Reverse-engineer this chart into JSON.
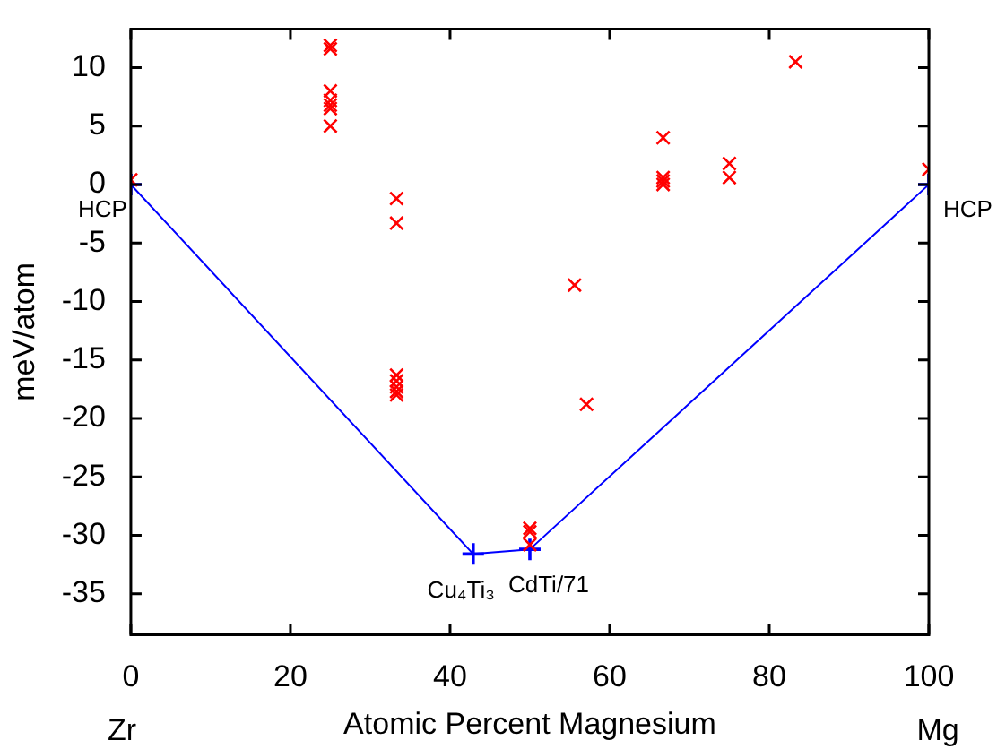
{
  "chart_data": {
    "type": "scatter",
    "xlabel": "Atomic Percent Magnesium",
    "ylabel": "meV/atom",
    "xlim": [
      0,
      100
    ],
    "xticks": [
      0,
      20,
      40,
      60,
      80,
      100
    ],
    "ylim": [
      -38.5,
      13.3
    ],
    "yticks": [
      -35,
      -30,
      -25,
      -20,
      -15,
      -10,
      -5,
      0,
      5,
      10
    ],
    "grid": false,
    "legend": false,
    "series": [
      {
        "type": "scatter",
        "color": "#ff0000",
        "marker": "cross",
        "x": [
          0,
          25,
          25,
          25,
          25,
          25,
          25,
          25,
          33.3,
          33.3,
          33.3,
          33.3,
          33.3,
          33.3,
          33.3,
          50,
          50,
          50,
          55.6,
          57.1,
          66.7,
          66.7,
          66.7,
          66.7,
          75,
          75,
          83.3,
          100
        ],
        "values": [
          0.4,
          11.9,
          11.6,
          8.0,
          7.2,
          6.8,
          6.5,
          5.0,
          -1.2,
          -3.3,
          -16.3,
          -16.8,
          -17.3,
          -17.7,
          -18.0,
          -29.4,
          -29.7,
          -30.8,
          -8.6,
          -18.8,
          4.0,
          0.6,
          0.3,
          0.0,
          1.8,
          0.6,
          10.5,
          1.3
        ]
      },
      {
        "type": "line",
        "color": "#0000ff",
        "marker": "cross",
        "x": [
          0,
          42.9,
          50,
          100
        ],
        "values": [
          0,
          -31.6,
          -31.2,
          0
        ]
      }
    ],
    "annotations": [
      {
        "text": "HCP",
        "x": 0,
        "y": 0
      },
      {
        "text": "HCP",
        "x": 100,
        "y": 0
      },
      {
        "text": "Cu₄Ti₃",
        "x": 42.9,
        "y": -31.6
      },
      {
        "text": "CdTi/71",
        "x": 50,
        "y": -31.2
      },
      "Zr",
      "Mg"
    ]
  }
}
